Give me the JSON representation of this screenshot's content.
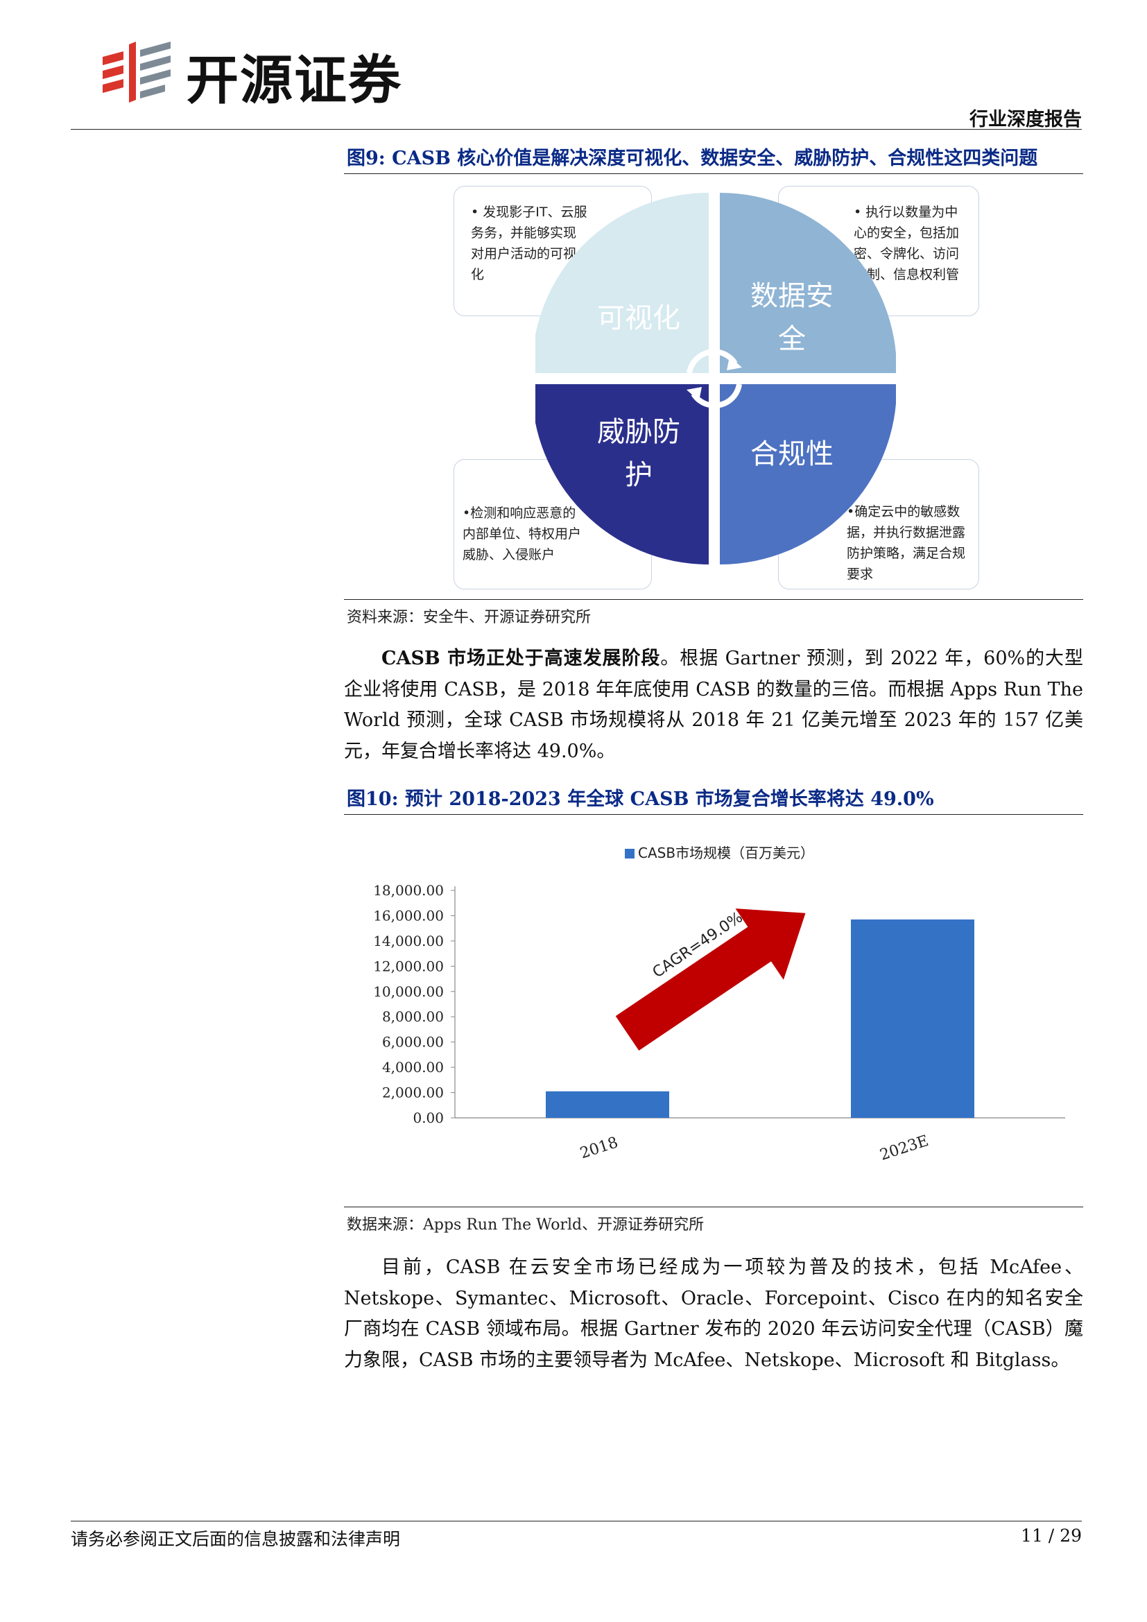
{
  "header": {
    "brand_name": "开源证券",
    "report_type": "行业深度报告"
  },
  "figure9": {
    "title": "图9:  CASB 核心价值是解决深度可视化、数据安全、威胁防护、合规性这四类问题",
    "quadrants": {
      "visibility": {
        "label": "可视化",
        "desc": "• 发现影子IT、云服务务，并能够实现对用户活动的可视化"
      },
      "data_security": {
        "label": "数据安全",
        "desc": "• 执行以数量为中心的安全，包括加密、令牌化、访问控制、信息权利管理"
      },
      "threat_protection": {
        "label": "威胁防护",
        "desc": "•检测和响应恶意的内部单位、特权用户威胁、入侵账户"
      },
      "compliance": {
        "label": "合规性",
        "desc": "•确定云中的敏感数据，并执行数据泄露防护策略，满足合规要求"
      }
    },
    "colors": {
      "visibility": "#d6eaf0",
      "data_security": "#8fb4d4",
      "threat_protection": "#2b2f8c",
      "compliance": "#4e72c2"
    },
    "source": "资料来源：安全牛、开源证券研究所"
  },
  "paragraph1": {
    "bold_lead": "CASB 市场正处于高速发展阶段",
    "text": "。根据 Gartner 预测，到 2022 年，60%的大型企业将使用 CASB，是 2018 年年底使用 CASB 的数量的三倍。而根据 Apps Run The World 预测，全球 CASB 市场规模将从 2018 年 21 亿美元增至 2023 年的 157 亿美元，年复合增长率将达 49.0%。"
  },
  "figure10": {
    "title": "图10:  预计 2018-2023 年全球 CASB 市场复合增长率将达 49.0%",
    "annotation": "CAGR=49.0%",
    "source": "数据来源：Apps Run The World、开源证券研究所"
  },
  "chart_data": {
    "type": "bar",
    "categories": [
      "2018",
      "2023E"
    ],
    "series": [
      {
        "name": "CASB市场规模（百万美元）",
        "values": [
          2100,
          15700
        ]
      }
    ],
    "ylim": [
      0,
      18000
    ],
    "yticks": [
      "0.00",
      "2,000.00",
      "4,000.00",
      "6,000.00",
      "8,000.00",
      "10,000.00",
      "12,000.00",
      "14,000.00",
      "16,000.00",
      "18,000.00"
    ],
    "legend_position": "top-center",
    "bar_color": "#3472c6",
    "arrow_color": "#c00000",
    "grid": false
  },
  "paragraph2": {
    "text": "目前，CASB 在云安全市场已经成为一项较为普及的技术，包括 McAfee、Netskope、Symantec、Microsoft、Oracle、Forcepoint、Cisco 在内的知名安全厂商均在 CASB 领域布局。根据 Gartner 发布的 2020 年云访问安全代理（CASB）魔力象限，CASB 市场的主要领导者为 McAfee、Netskope、Microsoft 和 Bitglass。"
  },
  "footer": {
    "disclaimer": "请务必参阅正文后面的信息披露和法律声明",
    "page": "11 / 29"
  }
}
